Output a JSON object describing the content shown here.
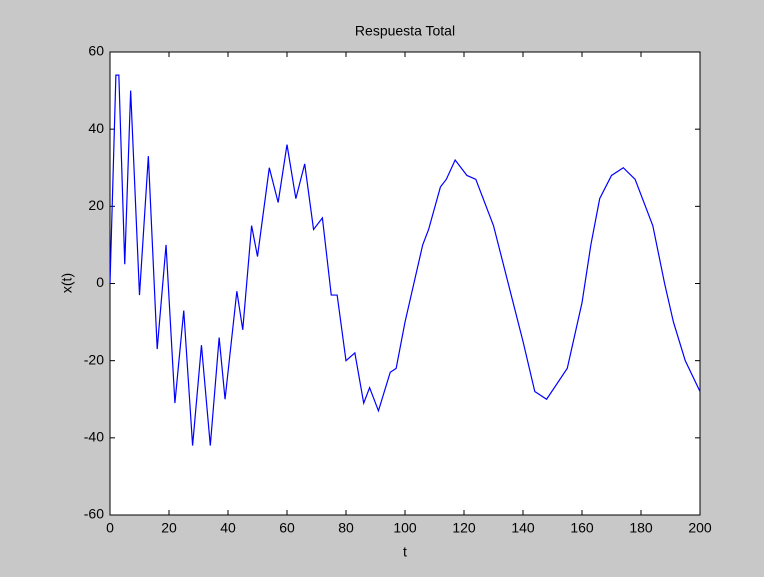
{
  "chart_data": {
    "type": "line",
    "title": "Respuesta Total",
    "x_label": "t",
    "y_label": "x(t)",
    "x": [
      0,
      2,
      3,
      5,
      7,
      10,
      13,
      16,
      19,
      22,
      25,
      28,
      31,
      34,
      37,
      39,
      43,
      45,
      48,
      50,
      54,
      57,
      60,
      63,
      66,
      69,
      72,
      75,
      77,
      80,
      83,
      86,
      88,
      91,
      95,
      97,
      100,
      103,
      106,
      108,
      112,
      114,
      117,
      121,
      124,
      130,
      135,
      140,
      144,
      148,
      155,
      160,
      163,
      166,
      170,
      174,
      178,
      184,
      188,
      191,
      195,
      200
    ],
    "series": [
      {
        "name": "x(t)",
        "color": "#0000ff",
        "values": [
          0,
          54,
          54,
          5,
          50,
          -3,
          33,
          -17,
          10,
          -31,
          -7,
          -42,
          -16,
          -42,
          -14,
          -30,
          -2,
          -12,
          15,
          7,
          30,
          21,
          36,
          22,
          31,
          14,
          17,
          -3,
          -3,
          -20,
          -18,
          -31,
          -27,
          -33,
          -23,
          -22,
          -10,
          0,
          10,
          14,
          25,
          27,
          32,
          28,
          27,
          15,
          0,
          -15,
          -28,
          -30,
          -22,
          -5,
          10,
          22,
          28,
          30,
          27,
          15,
          0,
          -10,
          -20,
          -28
        ]
      }
    ],
    "xlim": [
      0,
      200
    ],
    "xticks": [
      0,
      20,
      40,
      60,
      80,
      100,
      120,
      140,
      160,
      180,
      200
    ],
    "ylim": [
      -60,
      60
    ],
    "yticks": [
      -60,
      -40,
      -20,
      0,
      20,
      40,
      60
    ],
    "grid": false
  }
}
